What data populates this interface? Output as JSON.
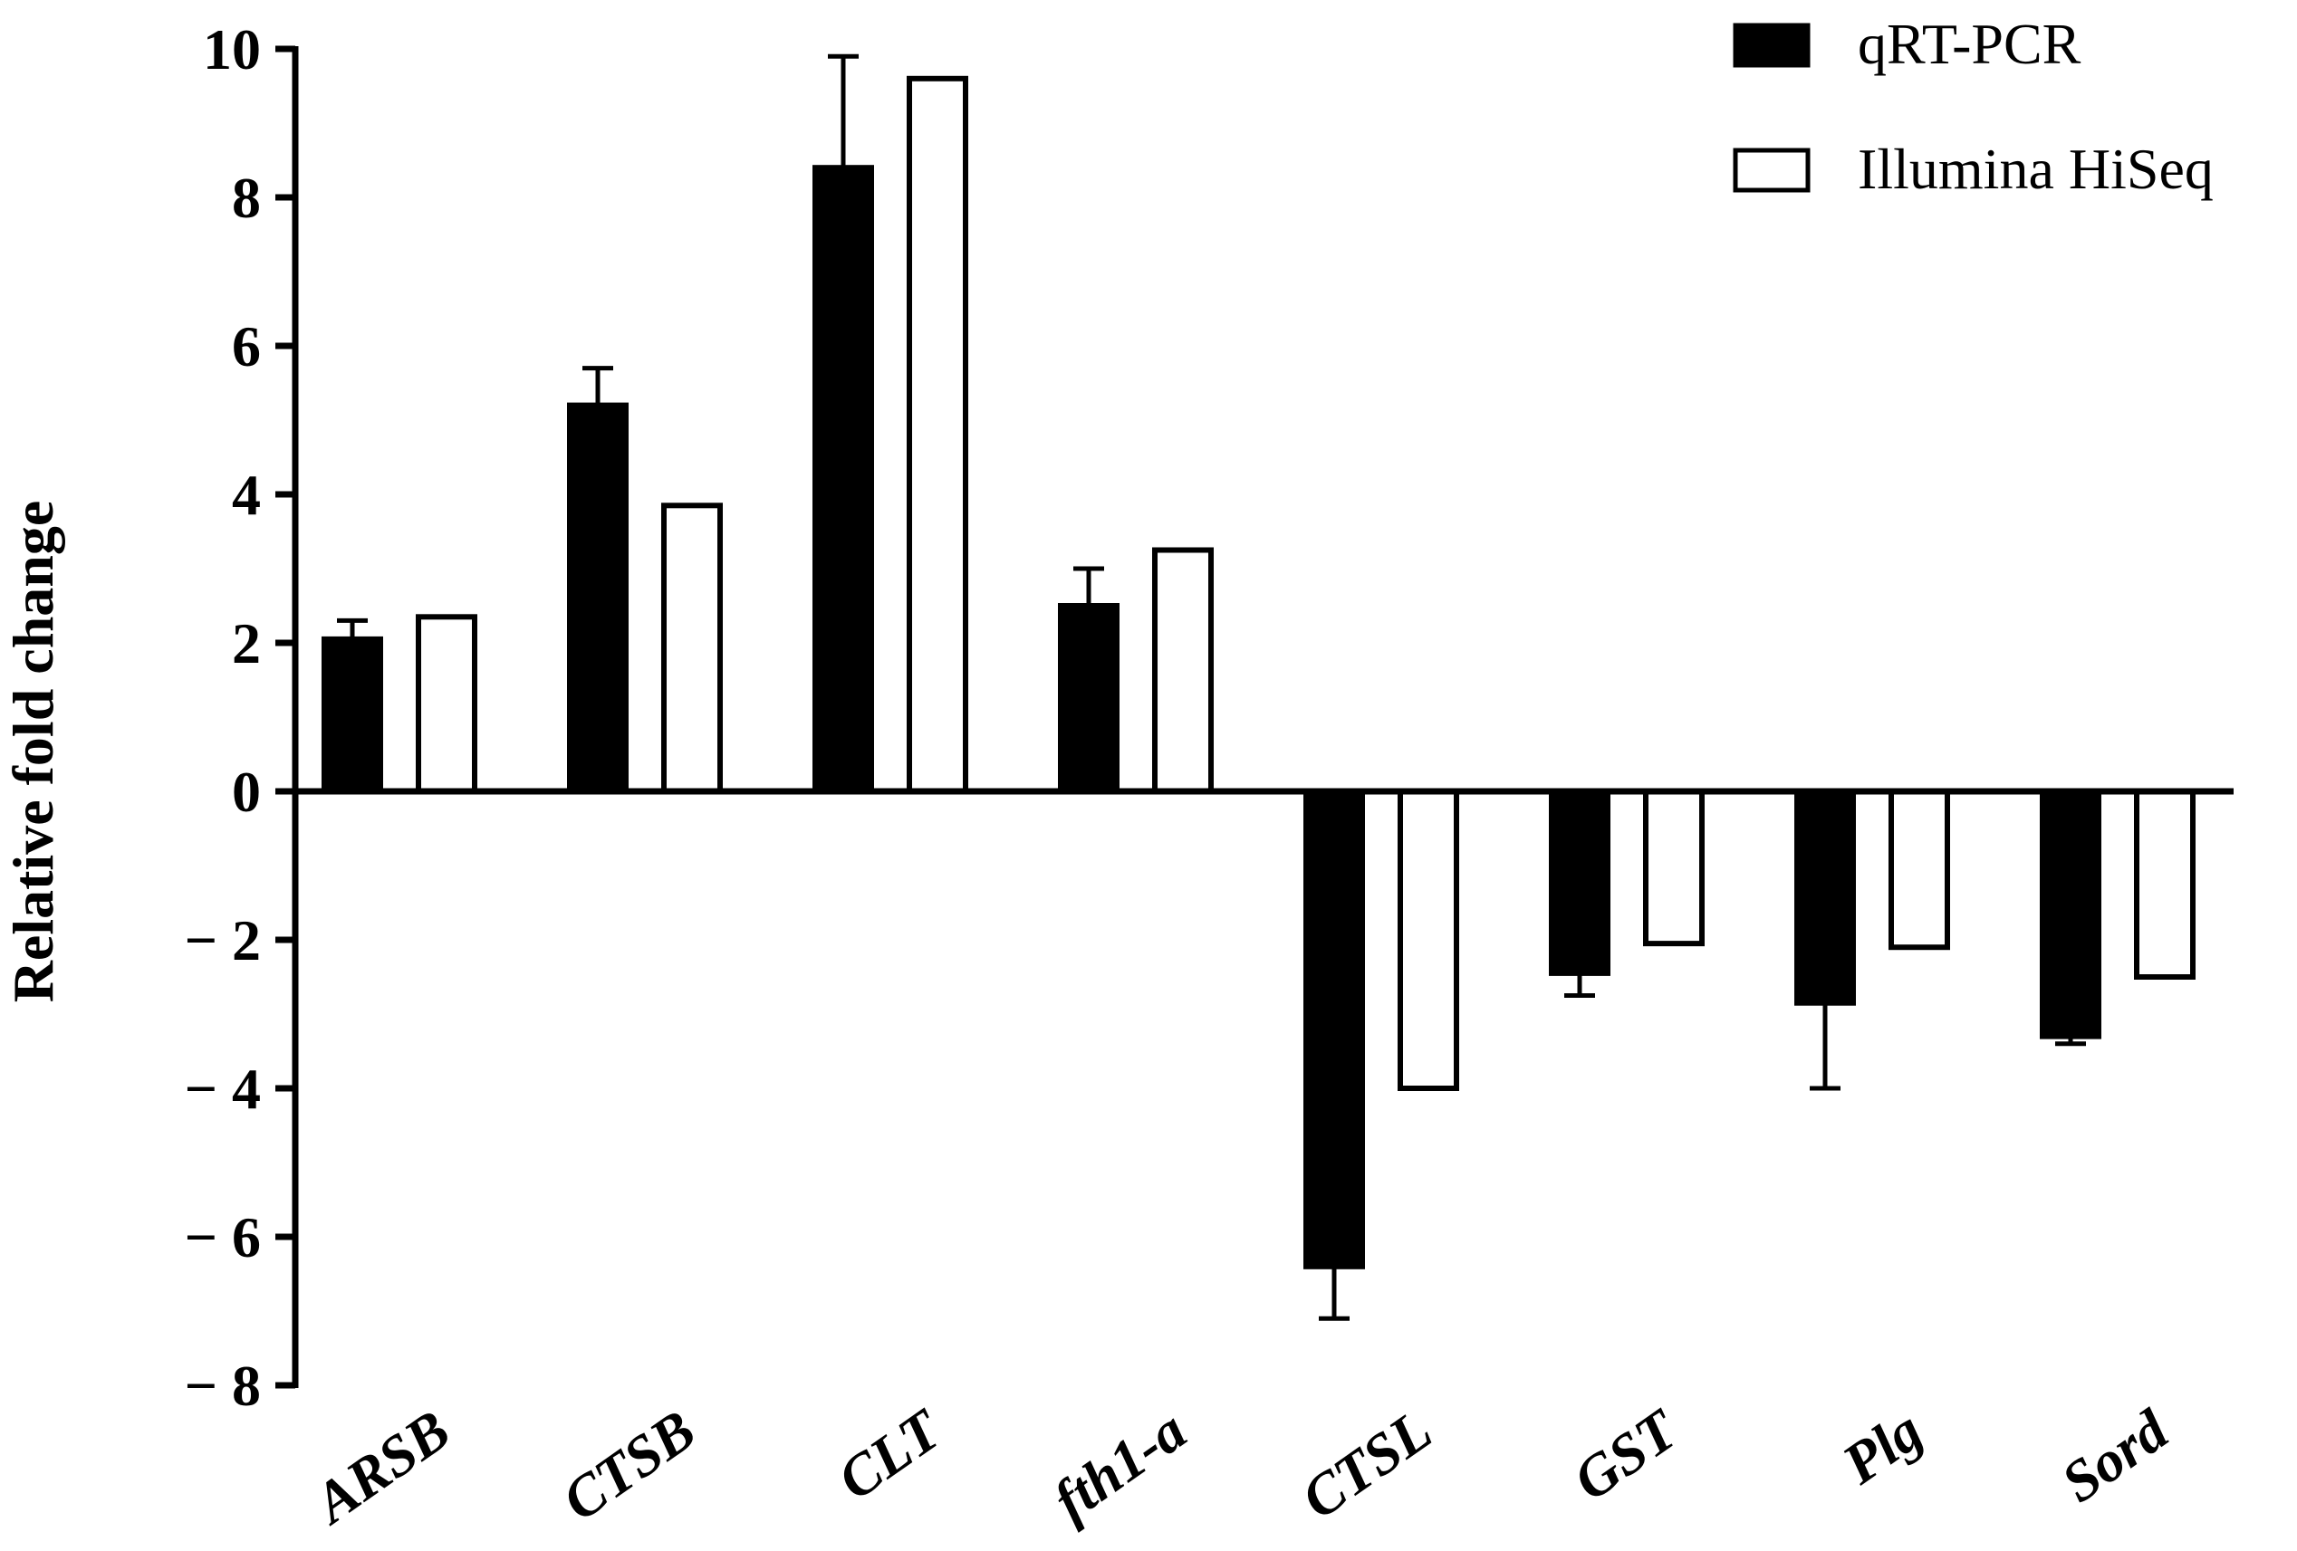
{
  "chart_data": {
    "type": "bar",
    "title": "",
    "xlabel": "",
    "ylabel": "Relative fold change",
    "ylim": [
      -8,
      10
    ],
    "yticks": [
      10,
      8,
      6,
      4,
      2,
      0,
      -2,
      -4,
      -6,
      -8
    ],
    "ytick_labels": [
      "10",
      "8",
      "6",
      "4",
      "2",
      "0",
      "− 2",
      "− 4",
      "− 6",
      "− 8"
    ],
    "categories": [
      "ARSB",
      "CTSB",
      "CLT",
      "fth1-a",
      "CTSL",
      "GST",
      "Plg",
      "Sord"
    ],
    "series": [
      {
        "name": "qRT-PCR",
        "fill": "#000000",
        "values": [
          2.05,
          5.2,
          8.4,
          2.5,
          -6.4,
          -2.45,
          -2.85,
          -3.3
        ],
        "error": [
          0.25,
          0.5,
          1.5,
          0.5,
          0.7,
          0.3,
          1.15,
          0.1
        ]
      },
      {
        "name": "Illumina HiSeq",
        "fill": "#ffffff",
        "values": [
          2.35,
          3.85,
          9.6,
          3.25,
          -4.0,
          -2.05,
          -2.1,
          -2.5
        ],
        "error": null
      }
    ],
    "legend_position": "top-right",
    "grid": false
  }
}
